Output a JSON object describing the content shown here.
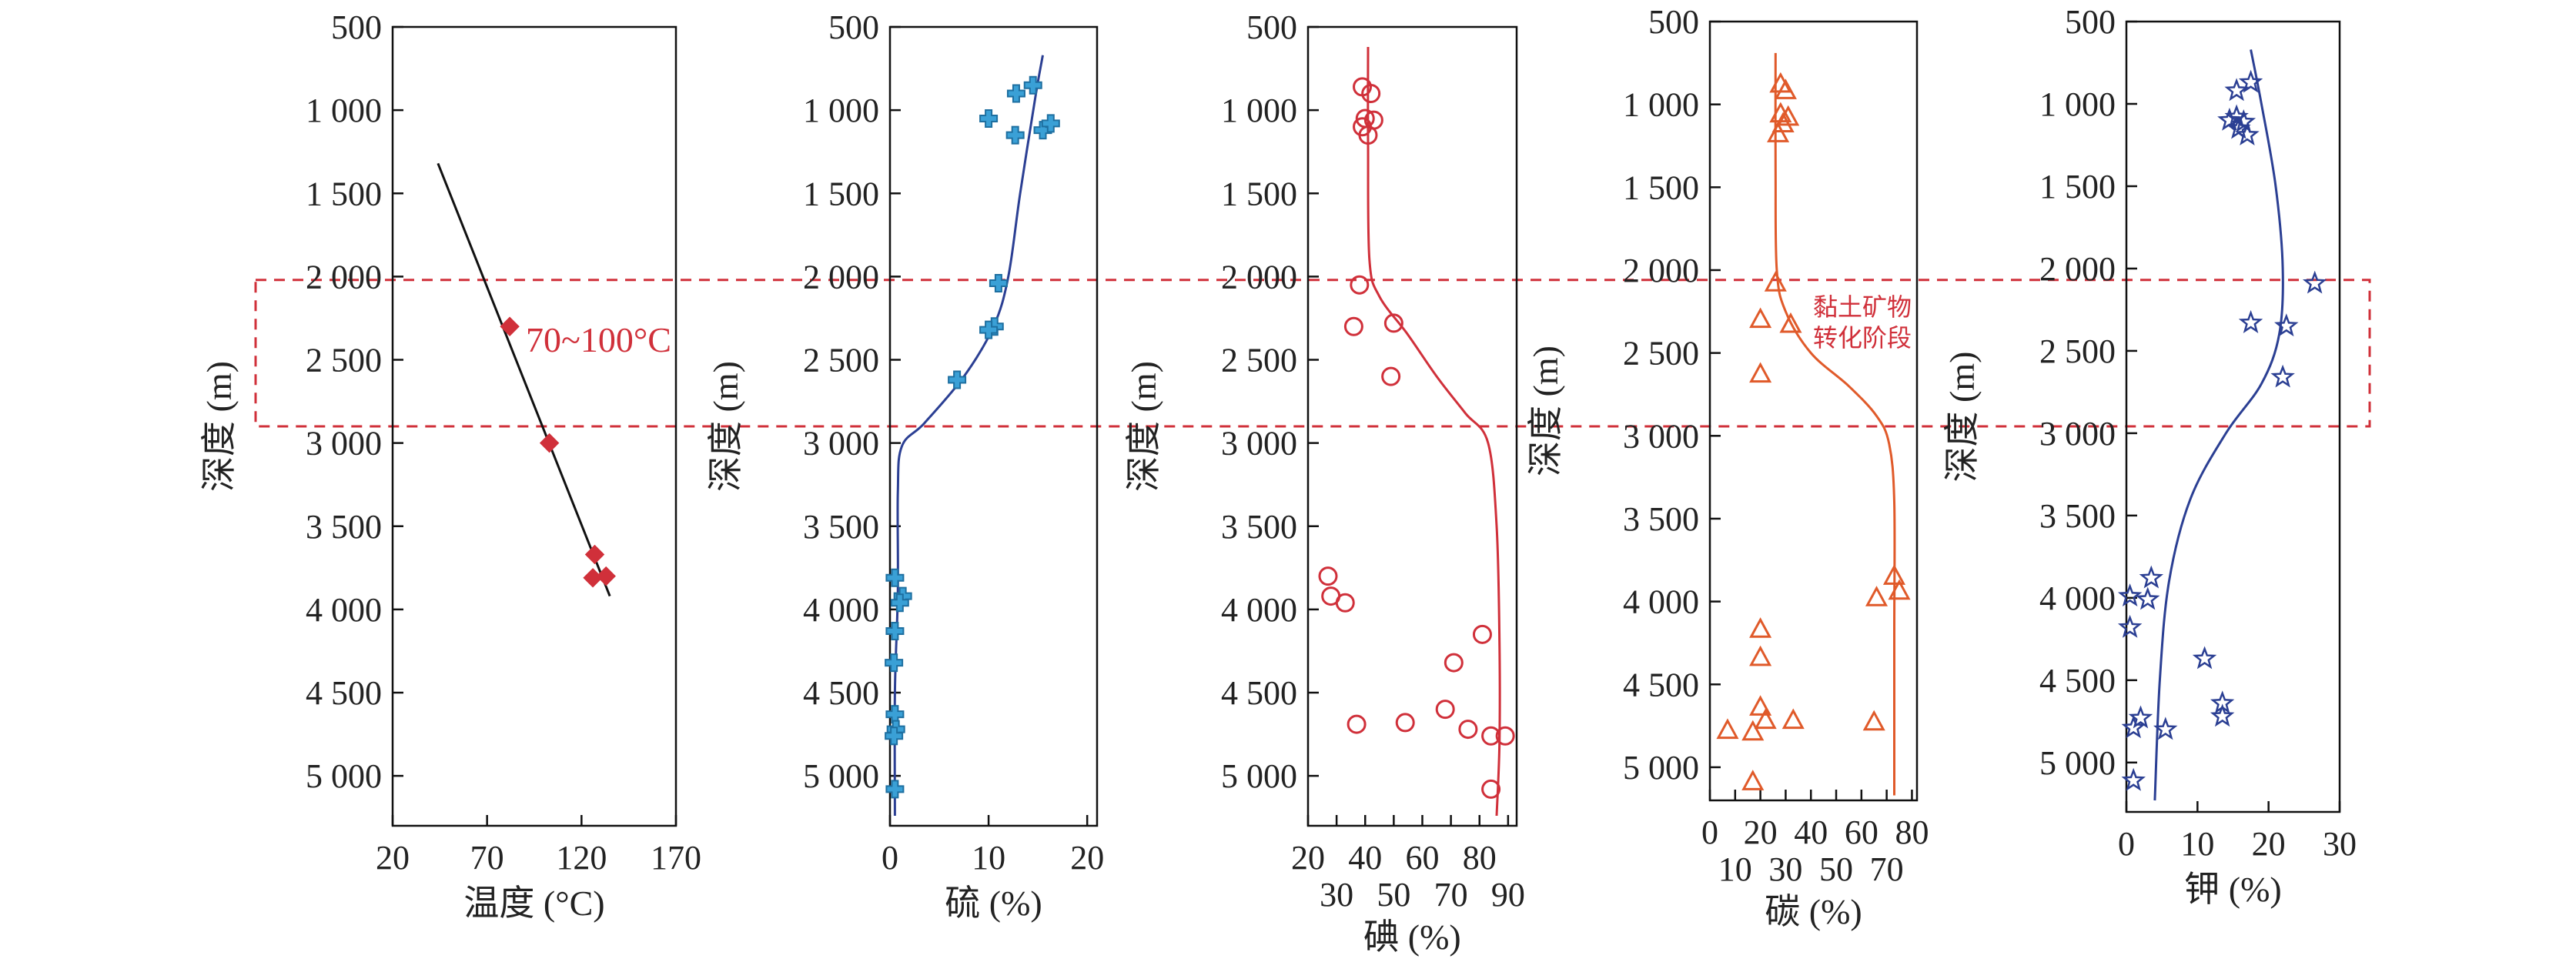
{
  "colors": {
    "axis": "#111111",
    "highlight": "#d0303a",
    "blue": "#2b3f93",
    "cyan": "#3aa0d6",
    "red": "#d0303a",
    "orange": "#e05a2a"
  },
  "highlight_zone": {
    "from_depth": 2020,
    "to_depth": 2900,
    "style": "dashed-box"
  },
  "chart_data": [
    {
      "id": "temperature",
      "type": "scatter",
      "title": "",
      "xlabel": "温度 (°C)",
      "ylabel": "深度 (m)",
      "ylim": [
        500,
        5300
      ],
      "y_reversed": true,
      "yticks": [
        500,
        1000,
        1500,
        2000,
        2500,
        3000,
        3500,
        4000,
        4500,
        5000
      ],
      "yticklabels": [
        "500",
        "1 000",
        "1 500",
        "2 000",
        "2 500",
        "3 000",
        "3 500",
        "4 000",
        "4 500",
        "5 000"
      ],
      "xlim": [
        20,
        170
      ],
      "xticks": [
        20,
        70,
        120,
        170
      ],
      "xticklabels": [
        "20",
        "70",
        "120",
        "170"
      ],
      "marker": "diamond",
      "marker_color": "#d0303a",
      "line_color": "#111111",
      "points": [
        {
          "x": 82,
          "y": 2300
        },
        {
          "x": 103,
          "y": 3000
        },
        {
          "x": 127,
          "y": 3670
        },
        {
          "x": 126,
          "y": 3810
        },
        {
          "x": 133,
          "y": 3800
        }
      ],
      "trend": [
        [
          44,
          1320
        ],
        [
          135,
          3920
        ]
      ],
      "annotation": "70~100°C"
    },
    {
      "id": "sulfur",
      "type": "scatter",
      "title": "",
      "xlabel": "硫 (%)",
      "ylabel": "深度 (m)",
      "ylim": [
        500,
        5300
      ],
      "y_reversed": true,
      "yticks": [
        500,
        1000,
        1500,
        2000,
        2500,
        3000,
        3500,
        4000,
        4500,
        5000
      ],
      "yticklabels": [
        "500",
        "1 000",
        "1 500",
        "2 000",
        "2 500",
        "3 000",
        "3 500",
        "4 000",
        "4 500",
        "5 000"
      ],
      "xlim": [
        0,
        21
      ],
      "xticks": [
        0,
        10,
        20
      ],
      "xticklabels": [
        "0",
        "10",
        "20"
      ],
      "marker": "plus",
      "marker_color": "#3aa0d6",
      "line_color": "#2b3f93",
      "points": [
        {
          "x": 12.8,
          "y": 900
        },
        {
          "x": 14.5,
          "y": 850
        },
        {
          "x": 10.0,
          "y": 1050
        },
        {
          "x": 12.7,
          "y": 1150
        },
        {
          "x": 15.5,
          "y": 1120
        },
        {
          "x": 16.3,
          "y": 1080
        },
        {
          "x": 11.0,
          "y": 2040
        },
        {
          "x": 10.6,
          "y": 2300
        },
        {
          "x": 10.0,
          "y": 2320
        },
        {
          "x": 6.8,
          "y": 2620
        },
        {
          "x": 0.5,
          "y": 3810
        },
        {
          "x": 1.3,
          "y": 3920
        },
        {
          "x": 1.0,
          "y": 3960
        },
        {
          "x": 0.5,
          "y": 4130
        },
        {
          "x": 0.4,
          "y": 4320
        },
        {
          "x": 0.5,
          "y": 4630
        },
        {
          "x": 0.6,
          "y": 4720
        },
        {
          "x": 0.4,
          "y": 4760
        },
        {
          "x": 0.5,
          "y": 5080
        }
      ],
      "trend": [
        [
          15.5,
          670
        ],
        [
          14.8,
          900
        ],
        [
          13.2,
          1500
        ],
        [
          12.0,
          2000
        ],
        [
          10.5,
          2300
        ],
        [
          7.5,
          2600
        ],
        [
          3.5,
          2880
        ],
        [
          1.2,
          3020
        ],
        [
          0.8,
          3300
        ],
        [
          0.8,
          3900
        ],
        [
          0.5,
          4500
        ],
        [
          0.5,
          5240
        ]
      ]
    },
    {
      "id": "iodine",
      "type": "scatter",
      "title": "",
      "xlabel": "碘 (%)",
      "ylabel": "深度 (m)",
      "ylim": [
        500,
        5300
      ],
      "y_reversed": true,
      "yticks": [
        500,
        1000,
        1500,
        2000,
        2500,
        3000,
        3500,
        4000,
        4500,
        5000
      ],
      "yticklabels": [
        "500",
        "1 000",
        "1 500",
        "2 000",
        "2 500",
        "3 000",
        "3 500",
        "4 000",
        "4 500",
        "5 000"
      ],
      "xlim": [
        20,
        93
      ],
      "xticks": [
        20,
        30,
        40,
        50,
        60,
        70,
        80,
        90
      ],
      "xticklabels": [
        "20",
        "30",
        "40",
        "50",
        "60",
        "70",
        "80",
        "90"
      ],
      "xtick_staggered": true,
      "marker": "circle-open",
      "marker_color": "#d0303a",
      "line_color": "#d0303a",
      "points": [
        {
          "x": 39,
          "y": 860
        },
        {
          "x": 42,
          "y": 900
        },
        {
          "x": 40,
          "y": 1050
        },
        {
          "x": 43,
          "y": 1060
        },
        {
          "x": 39,
          "y": 1100
        },
        {
          "x": 41,
          "y": 1150
        },
        {
          "x": 38,
          "y": 2050
        },
        {
          "x": 36,
          "y": 2300
        },
        {
          "x": 50,
          "y": 2280
        },
        {
          "x": 49,
          "y": 2600
        },
        {
          "x": 27,
          "y": 3800
        },
        {
          "x": 28,
          "y": 3920
        },
        {
          "x": 33,
          "y": 3960
        },
        {
          "x": 81,
          "y": 4150
        },
        {
          "x": 71,
          "y": 4320
        },
        {
          "x": 68,
          "y": 4600
        },
        {
          "x": 37,
          "y": 4690
        },
        {
          "x": 54,
          "y": 4680
        },
        {
          "x": 76,
          "y": 4720
        },
        {
          "x": 84,
          "y": 4760
        },
        {
          "x": 89,
          "y": 4760
        },
        {
          "x": 84,
          "y": 5080
        }
      ],
      "trend": [
        [
          41,
          620
        ],
        [
          41,
          1200
        ],
        [
          41.5,
          1900
        ],
        [
          45,
          2120
        ],
        [
          55,
          2350
        ],
        [
          65,
          2600
        ],
        [
          75,
          2820
        ],
        [
          83,
          3000
        ],
        [
          86,
          3500
        ],
        [
          87,
          4200
        ],
        [
          87,
          4800
        ],
        [
          86,
          5240
        ]
      ]
    },
    {
      "id": "carbon",
      "type": "scatter",
      "title": "",
      "xlabel": "碳 (%)",
      "ylabel": "深度 (m)",
      "ylim": [
        500,
        5200
      ],
      "y_reversed": true,
      "yticks": [
        500,
        1000,
        1500,
        2000,
        2500,
        3000,
        3500,
        4000,
        4500,
        5000
      ],
      "yticklabels": [
        "500",
        "1 000",
        "1 500",
        "2 000",
        "2 500",
        "3 000",
        "3 500",
        "4 000",
        "4 500",
        "5 000"
      ],
      "xlim": [
        0,
        82
      ],
      "xticks": [
        0,
        10,
        20,
        30,
        40,
        50,
        60,
        70,
        80
      ],
      "xticklabels": [
        "0",
        "10",
        "20",
        "30",
        "40",
        "50",
        "60",
        "70",
        "80"
      ],
      "xtick_staggered": true,
      "marker": "triangle-open",
      "marker_color": "#e05a2a",
      "line_color": "#e05a2a",
      "points": [
        {
          "x": 28,
          "y": 880
        },
        {
          "x": 30,
          "y": 920
        },
        {
          "x": 28,
          "y": 1060
        },
        {
          "x": 31,
          "y": 1080
        },
        {
          "x": 29,
          "y": 1120
        },
        {
          "x": 27,
          "y": 1180
        },
        {
          "x": 26,
          "y": 2080
        },
        {
          "x": 20,
          "y": 2300
        },
        {
          "x": 32,
          "y": 2330
        },
        {
          "x": 20,
          "y": 2630
        },
        {
          "x": 73,
          "y": 3850
        },
        {
          "x": 75,
          "y": 3940
        },
        {
          "x": 66,
          "y": 3980
        },
        {
          "x": 20,
          "y": 4170
        },
        {
          "x": 20,
          "y": 4340
        },
        {
          "x": 20,
          "y": 4640
        },
        {
          "x": 22,
          "y": 4720
        },
        {
          "x": 33,
          "y": 4720
        },
        {
          "x": 17,
          "y": 4790
        },
        {
          "x": 7,
          "y": 4780
        },
        {
          "x": 65,
          "y": 4730
        },
        {
          "x": 17,
          "y": 5090
        }
      ],
      "trend": [
        [
          26,
          690
        ],
        [
          26,
          1400
        ],
        [
          26.5,
          2000
        ],
        [
          30,
          2250
        ],
        [
          40,
          2500
        ],
        [
          55,
          2700
        ],
        [
          66,
          2880
        ],
        [
          71,
          3050
        ],
        [
          73,
          3400
        ],
        [
          73,
          4200
        ],
        [
          73,
          5170
        ]
      ],
      "annotation_lines": [
        "黏土矿物",
        "转化阶段"
      ]
    },
    {
      "id": "potassium",
      "type": "scatter",
      "title": "",
      "xlabel": "钾 (%)",
      "ylabel": "深度 (m)",
      "ylim": [
        500,
        5300
      ],
      "y_reversed": true,
      "yticks": [
        500,
        1000,
        1500,
        2000,
        2500,
        3000,
        3500,
        4000,
        4500,
        5000
      ],
      "yticklabels": [
        "500",
        "1 000",
        "1 500",
        "2 000",
        "2 500",
        "3 000",
        "3 500",
        "4 000",
        "4 500",
        "5 000"
      ],
      "xlim": [
        0,
        30
      ],
      "xticks": [
        0,
        10,
        20,
        30
      ],
      "xticklabels": [
        "0",
        "10",
        "20",
        "30"
      ],
      "marker": "star-open",
      "marker_color": "#2b3f93",
      "line_color": "#2b3f93",
      "points": [
        {
          "x": 17.5,
          "y": 870
        },
        {
          "x": 15.5,
          "y": 920
        },
        {
          "x": 15.5,
          "y": 1080
        },
        {
          "x": 14.5,
          "y": 1100
        },
        {
          "x": 16.5,
          "y": 1110
        },
        {
          "x": 15.8,
          "y": 1150
        },
        {
          "x": 17.0,
          "y": 1190
        },
        {
          "x": 26.5,
          "y": 2090
        },
        {
          "x": 17.5,
          "y": 2330
        },
        {
          "x": 22.5,
          "y": 2350
        },
        {
          "x": 22.0,
          "y": 2660
        },
        {
          "x": 3.5,
          "y": 3880
        },
        {
          "x": 0.5,
          "y": 3990
        },
        {
          "x": 3.0,
          "y": 4010
        },
        {
          "x": 0.5,
          "y": 4180
        },
        {
          "x": 11.0,
          "y": 4370
        },
        {
          "x": 13.5,
          "y": 4640
        },
        {
          "x": 13.5,
          "y": 4720
        },
        {
          "x": 2.0,
          "y": 4730
        },
        {
          "x": 1.0,
          "y": 4790
        },
        {
          "x": 5.5,
          "y": 4800
        },
        {
          "x": 1.0,
          "y": 5110
        }
      ],
      "trend": [
        [
          17.5,
          670
        ],
        [
          19.0,
          1000
        ],
        [
          21.0,
          1500
        ],
        [
          22.0,
          2000
        ],
        [
          21.5,
          2400
        ],
        [
          19.0,
          2700
        ],
        [
          14.0,
          3000
        ],
        [
          9.0,
          3400
        ],
        [
          6.0,
          3900
        ],
        [
          4.7,
          4500
        ],
        [
          4.0,
          5230
        ]
      ]
    }
  ]
}
